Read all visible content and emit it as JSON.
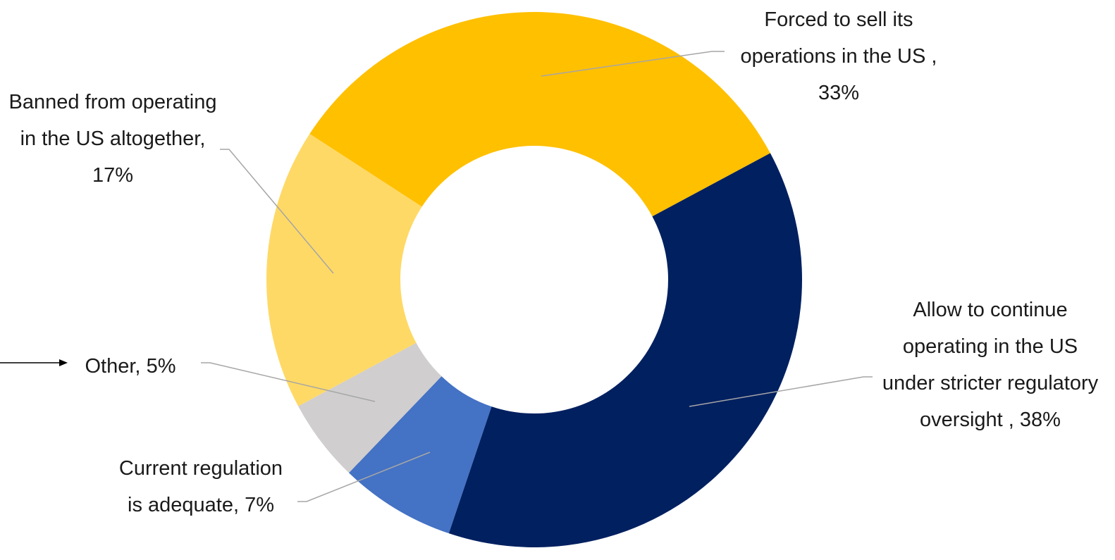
{
  "chart_data": {
    "type": "donut",
    "categories": [
      "Forced to sell its operations in the US ,",
      "Allow to continue operating in the US under stricter regulatory oversight ,",
      "Current regulation is adequate,",
      "Other,",
      "Banned from operating in the US altogether,"
    ],
    "values": [
      33,
      38,
      7,
      5,
      17
    ],
    "value_labels": [
      "33%",
      "38%",
      "7%",
      "5%",
      "17%"
    ],
    "colors": [
      "#ffc000",
      "#002060",
      "#4472c4",
      "#d0cece",
      "#ffd966"
    ]
  }
}
